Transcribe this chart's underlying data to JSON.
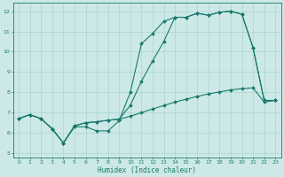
{
  "xlabel": "Humidex (Indice chaleur)",
  "xlim": [
    -0.5,
    23.5
  ],
  "ylim": [
    4.8,
    12.4
  ],
  "yticks": [
    5,
    6,
    7,
    8,
    9,
    10,
    11,
    12
  ],
  "xticks": [
    0,
    1,
    2,
    3,
    4,
    5,
    6,
    7,
    8,
    9,
    10,
    11,
    12,
    13,
    14,
    15,
    16,
    17,
    18,
    19,
    20,
    21,
    22,
    23
  ],
  "bg_color": "#cce9e7",
  "grid_color": "#aad4d0",
  "line_color": "#1a7a6e",
  "line1_y": [
    6.7,
    6.9,
    6.7,
    6.2,
    5.5,
    6.3,
    6.3,
    6.1,
    6.1,
    6.6,
    8.0,
    10.4,
    10.9,
    11.5,
    11.7,
    11.7,
    11.9,
    11.8,
    11.95,
    12.0,
    11.85,
    10.2,
    7.6,
    7.6
  ],
  "line2_y": [
    6.7,
    6.9,
    6.7,
    6.2,
    5.5,
    6.35,
    6.5,
    6.55,
    6.62,
    6.68,
    6.82,
    7.0,
    7.18,
    7.35,
    7.52,
    7.66,
    7.8,
    7.92,
    8.02,
    8.12,
    8.18,
    8.22,
    7.52,
    7.6
  ],
  "line3_y": [
    6.7,
    6.9,
    6.7,
    6.2,
    5.5,
    6.35,
    6.5,
    6.55,
    6.62,
    6.68,
    7.35,
    8.55,
    9.55,
    10.5,
    11.7,
    11.7,
    11.9,
    11.8,
    11.95,
    12.0,
    11.85,
    10.2,
    7.6,
    7.6
  ]
}
